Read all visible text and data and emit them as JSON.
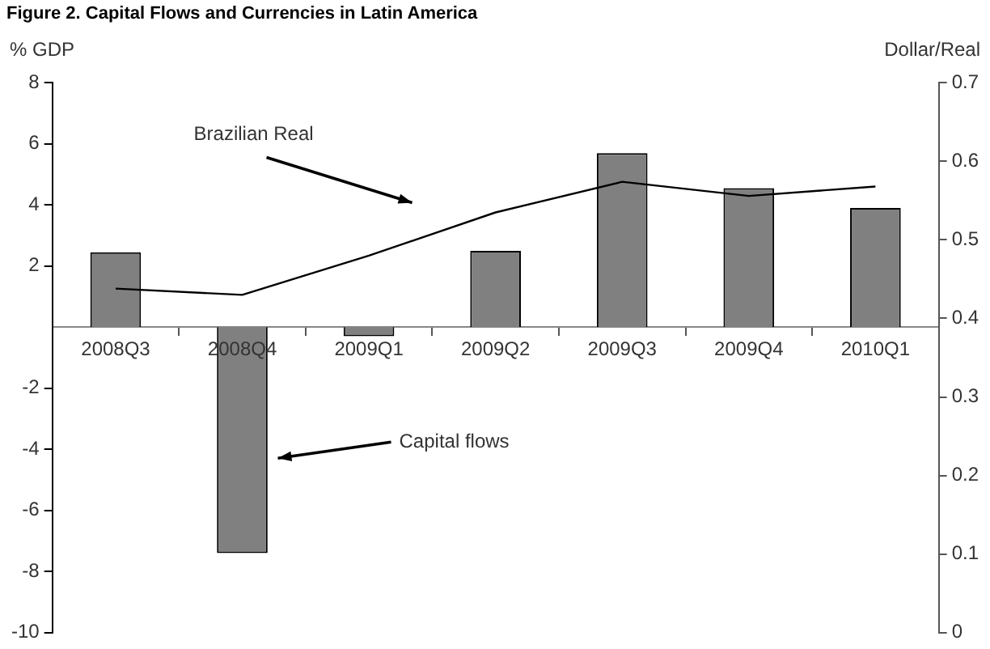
{
  "chart_data": {
    "type": "bar",
    "title": "Figure 2. Capital Flows and Currencies in Latin America",
    "ylabel": "% GDP",
    "y2label": "Dollar/Real",
    "categories": [
      "2008Q3",
      "2008Q4",
      "2009Q1",
      "2009Q2",
      "2009Q3",
      "2009Q4",
      "2010Q1"
    ],
    "series": [
      {
        "name": "Capital flows",
        "color": "#808080",
        "values": [
          2.45,
          -7.4,
          -0.3,
          2.5,
          5.7,
          4.55,
          3.9
        ]
      },
      {
        "name": "Brazilian Real",
        "type": "line",
        "axis": "y2",
        "color": "#000000",
        "values": [
          0.438,
          0.43,
          0.48,
          0.535,
          0.574,
          0.556,
          0.568
        ]
      }
    ],
    "ylim": [
      -10,
      8
    ],
    "yticks": [
      -10,
      -8,
      -6,
      -4,
      -2,
      2,
      4,
      6,
      8
    ],
    "y2lim": [
      0,
      0.7
    ],
    "y2ticks": [
      0,
      0.1,
      0.2,
      0.3,
      0.4,
      0.5,
      0.6,
      0.7
    ],
    "grid": false,
    "legend": false,
    "marker": "none"
  }
}
